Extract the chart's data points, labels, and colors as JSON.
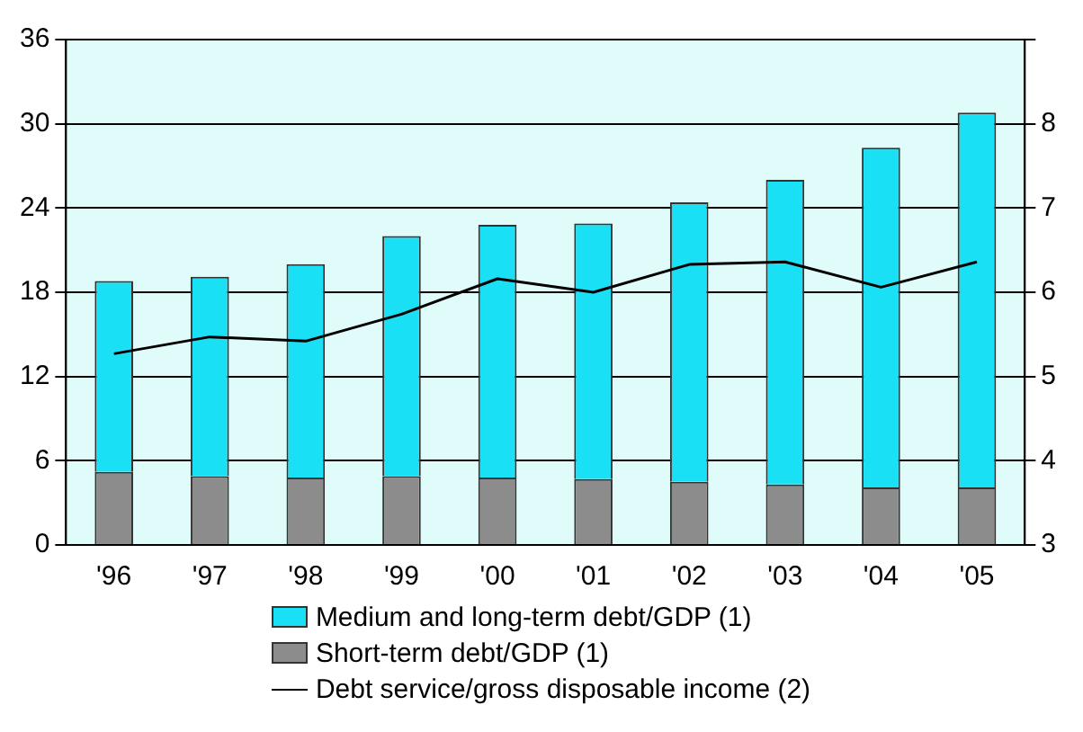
{
  "chart_data": {
    "type": "bar",
    "stacked": true,
    "categories": [
      "'96",
      "'97",
      "'98",
      "'99",
      "'00",
      "'01",
      "'02",
      "'03",
      "'04",
      "'05"
    ],
    "series": [
      {
        "name": "Short-term debt/GDP (1)",
        "color": "#8c8c8c",
        "values": [
          5.2,
          4.9,
          4.8,
          4.9,
          4.8,
          4.7,
          4.5,
          4.3,
          4.1,
          4.1
        ]
      },
      {
        "name": "Medium and long-term debt/GDP (1)",
        "color": "#1ae0f5",
        "values": [
          13.6,
          14.2,
          15.2,
          17.1,
          18.0,
          18.2,
          19.9,
          21.7,
          24.2,
          26.7
        ]
      },
      {
        "name": "Debt service/gross disposable income (2)",
        "type": "line",
        "axis": "y2",
        "color": "#000000",
        "values": [
          5.27,
          5.47,
          5.42,
          5.74,
          6.16,
          6.0,
          6.33,
          6.36,
          6.06,
          6.36
        ]
      }
    ],
    "ylim": [
      0,
      36
    ],
    "yticks": [
      0,
      6,
      12,
      18,
      24,
      30,
      36
    ],
    "y2lim": [
      3,
      9
    ],
    "y2ticks": [
      3,
      4,
      5,
      6,
      7,
      8,
      {
        "value": 9,
        "label": null
      }
    ],
    "grid": "y",
    "legend": "bottom",
    "marker": "none",
    "line_style": "solid"
  }
}
